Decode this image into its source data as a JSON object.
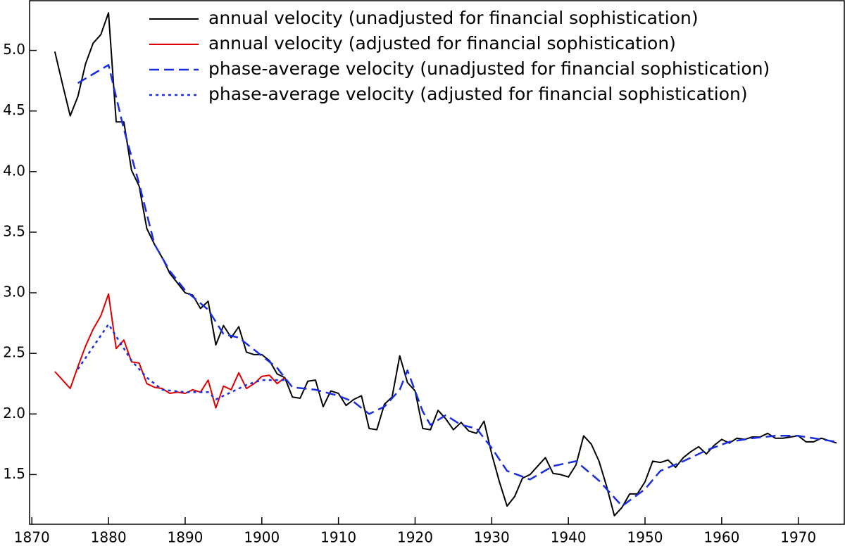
{
  "chart_data": {
    "type": "line",
    "xlim": [
      1869.7,
      1976
    ],
    "ylim": [
      1.09,
      5.41
    ],
    "xticks": [
      1870,
      1880,
      1890,
      1900,
      1910,
      1920,
      1930,
      1940,
      1950,
      1960,
      1970
    ],
    "yticks": [
      1.5,
      {
        "value": 2,
        "label": "2.0"
      },
      2.5,
      {
        "value": 3,
        "label": "3.0"
      },
      3.5,
      {
        "value": 4,
        "label": "4.0"
      },
      4.5,
      {
        "value": 5,
        "label": "5.0"
      }
    ],
    "legend": "top-right",
    "series": [
      {
        "name": "annual velocity (unadjusted for financial sophistication)",
        "color": "#000000",
        "dash": "solid",
        "x": [
          1873,
          1874,
          1875,
          1876,
          1877,
          1878,
          1879,
          1880,
          1881,
          1882,
          1883,
          1884,
          1885,
          1886,
          1887,
          1888,
          1889,
          1890,
          1891,
          1892,
          1893,
          1894,
          1895,
          1896,
          1897,
          1898,
          1899,
          1900,
          1901,
          1902,
          1903,
          1904,
          1905,
          1906,
          1907,
          1908,
          1909,
          1910,
          1911,
          1912,
          1913,
          1914,
          1915,
          1916,
          1917,
          1918,
          1919,
          1920,
          1921,
          1922,
          1923,
          1924,
          1925,
          1926,
          1927,
          1928,
          1929,
          1930,
          1931,
          1932,
          1933,
          1934,
          1935,
          1936,
          1937,
          1938,
          1939,
          1940,
          1941,
          1942,
          1943,
          1944,
          1945,
          1946,
          1947,
          1948,
          1949,
          1950,
          1951,
          1952,
          1953,
          1954,
          1955,
          1956,
          1957,
          1958,
          1959,
          1960,
          1961,
          1962,
          1963,
          1964,
          1965,
          1966,
          1967,
          1968,
          1969,
          1970,
          1971,
          1972,
          1973,
          1974,
          1975
        ],
        "values": [
          4.99,
          4.72,
          4.46,
          4.62,
          4.89,
          5.06,
          5.13,
          5.31,
          4.41,
          4.41,
          4.01,
          3.88,
          3.53,
          3.4,
          3.29,
          3.16,
          3.08,
          3.0,
          2.98,
          2.87,
          2.93,
          2.57,
          2.73,
          2.63,
          2.72,
          2.51,
          2.49,
          2.49,
          2.44,
          2.33,
          2.3,
          2.14,
          2.13,
          2.27,
          2.28,
          2.06,
          2.19,
          2.17,
          2.07,
          2.12,
          2.15,
          1.88,
          1.87,
          2.08,
          2.14,
          2.48,
          2.26,
          2.19,
          1.88,
          1.87,
          2.03,
          1.96,
          1.87,
          1.93,
          1.86,
          1.84,
          1.94,
          1.67,
          1.44,
          1.24,
          1.32,
          1.47,
          1.5,
          1.57,
          1.64,
          1.51,
          1.5,
          1.48,
          1.58,
          1.82,
          1.75,
          1.61,
          1.4,
          1.16,
          1.23,
          1.34,
          1.34,
          1.44,
          1.61,
          1.6,
          1.62,
          1.56,
          1.64,
          1.69,
          1.73,
          1.67,
          1.74,
          1.79,
          1.76,
          1.8,
          1.79,
          1.81,
          1.81,
          1.84,
          1.8,
          1.8,
          1.81,
          1.82,
          1.77,
          1.77,
          1.8,
          1.78,
          1.76
        ]
      },
      {
        "name": "annual velocity (adjusted for financial sophistication)",
        "color": "#dd0000",
        "dash": "solid",
        "x": [
          1873,
          1874,
          1875,
          1876,
          1877,
          1878,
          1879,
          1880,
          1881,
          1882,
          1883,
          1884,
          1885,
          1886,
          1887,
          1888,
          1889,
          1890,
          1891,
          1892,
          1893,
          1894,
          1895,
          1896,
          1897,
          1898,
          1899,
          1900,
          1901,
          1902,
          1903
        ],
        "values": [
          2.35,
          2.28,
          2.21,
          2.39,
          2.56,
          2.7,
          2.81,
          2.99,
          2.54,
          2.61,
          2.43,
          2.42,
          2.25,
          2.22,
          2.21,
          2.17,
          2.18,
          2.17,
          2.2,
          2.18,
          2.28,
          2.05,
          2.23,
          2.2,
          2.34,
          2.21,
          2.25,
          2.31,
          2.32,
          2.25,
          2.3
        ]
      },
      {
        "name": "phase-average velocity (unadjusted for financial sophistication)",
        "color": "#1a2ee0",
        "dash": "dashed",
        "x": [
          1876,
          1880,
          1882,
          1884,
          1886,
          1888,
          1890,
          1893,
          1895,
          1897,
          1900,
          1902,
          1904,
          1907,
          1910,
          1912,
          1914,
          1916,
          1918,
          1919,
          1921,
          1922,
          1924,
          1926,
          1928,
          1930,
          1932,
          1935,
          1938,
          1941,
          1944,
          1947,
          1950,
          1952,
          1955,
          1958,
          1961,
          1964,
          1967,
          1970,
          1975
        ],
        "values": [
          4.73,
          4.88,
          4.35,
          3.9,
          3.4,
          3.18,
          3.02,
          2.86,
          2.66,
          2.63,
          2.48,
          2.38,
          2.22,
          2.2,
          2.15,
          2.1,
          2.0,
          2.06,
          2.2,
          2.36,
          2.02,
          1.91,
          1.99,
          1.91,
          1.88,
          1.72,
          1.53,
          1.46,
          1.57,
          1.61,
          1.45,
          1.24,
          1.38,
          1.53,
          1.61,
          1.7,
          1.77,
          1.8,
          1.82,
          1.82,
          1.77
        ]
      },
      {
        "name": "phase-average velocity (adjusted for financial sophistication)",
        "color": "#1a2ee0",
        "dash": "dotted",
        "x": [
          1876,
          1880,
          1883,
          1885,
          1887,
          1890,
          1893,
          1894,
          1896,
          1898,
          1900,
          1903
        ],
        "values": [
          2.37,
          2.74,
          2.44,
          2.3,
          2.2,
          2.18,
          2.18,
          2.12,
          2.18,
          2.24,
          2.28,
          2.28
        ]
      }
    ]
  }
}
